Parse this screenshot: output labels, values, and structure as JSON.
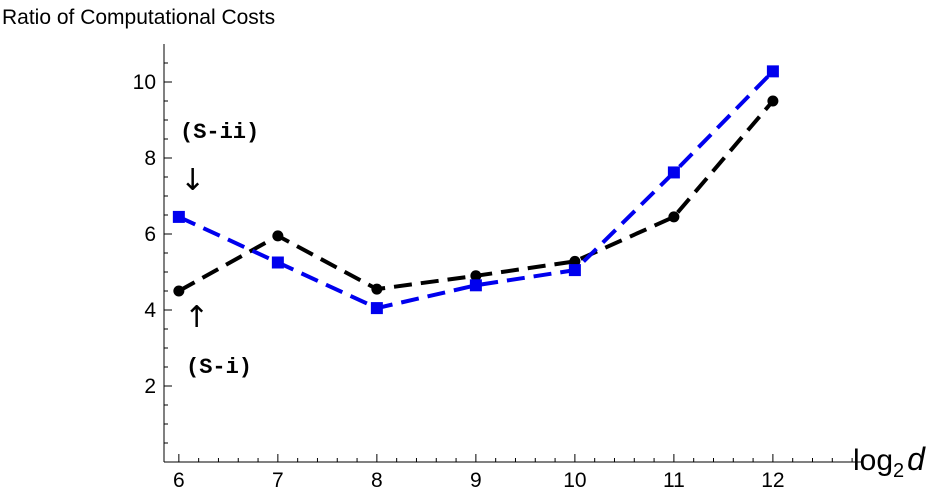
{
  "chart_data": {
    "type": "line",
    "title": "Ratio of Computational Costs",
    "xlabel_base": "log",
    "xlabel_sub": "2",
    "xlabel_var": "d",
    "ylabel": "",
    "x": [
      6,
      7,
      8,
      9,
      10,
      11,
      12
    ],
    "xticks": [
      "6",
      "7",
      "8",
      "9",
      "10",
      "11",
      "12"
    ],
    "yticks": [
      "2",
      "4",
      "6",
      "8",
      "10"
    ],
    "xlim": [
      5.85,
      12.9
    ],
    "ylim": [
      0,
      11
    ],
    "grid": false,
    "series": [
      {
        "name": "(S-i)",
        "color": "#000000",
        "marker": "circle",
        "values": [
          4.5,
          5.95,
          4.55,
          4.9,
          5.28,
          6.45,
          9.5
        ]
      },
      {
        "name": "(S-ii)",
        "color": "#0000ee",
        "marker": "square",
        "values": [
          6.45,
          5.25,
          4.05,
          4.65,
          5.05,
          7.62,
          10.28
        ]
      }
    ],
    "annotations": [
      {
        "text": "(S-ii)",
        "arrow": "↓"
      },
      {
        "text": "(S-i)",
        "arrow": "↑"
      }
    ]
  }
}
